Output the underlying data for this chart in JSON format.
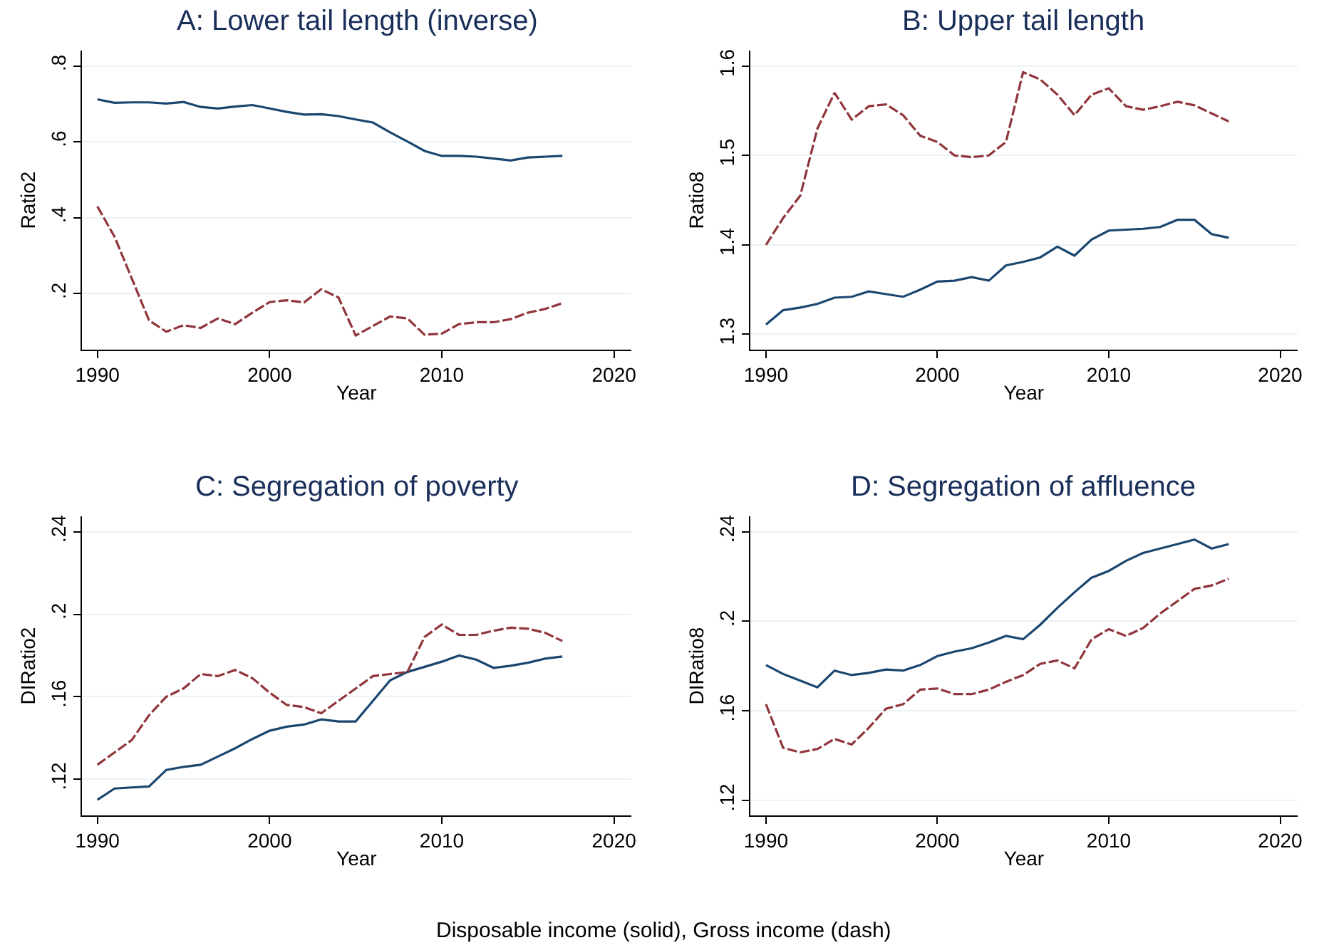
{
  "chart_data": [
    {
      "type": "line",
      "title": "A: Lower tail length (inverse)",
      "xlabel": "Year",
      "ylabel": "Ratio2",
      "x": [
        1990,
        1991,
        1992,
        1993,
        1994,
        1995,
        1996,
        1997,
        1998,
        1999,
        2000,
        2001,
        2002,
        2003,
        2004,
        2005,
        2006,
        2007,
        2008,
        2009,
        2010,
        2011,
        2012,
        2013,
        2014,
        2015,
        2016,
        2017
      ],
      "series": [
        {
          "color": "#1a476f",
          "line_style": "solid",
          "values": [
            0.712,
            0.703,
            0.704,
            0.704,
            0.701,
            0.705,
            0.692,
            0.688,
            0.693,
            0.697,
            0.688,
            0.679,
            0.672,
            0.673,
            0.668,
            0.659,
            0.651,
            0.625,
            0.601,
            0.576,
            0.563,
            0.563,
            0.561,
            0.556,
            0.551,
            0.559,
            0.561,
            0.563
          ]
        },
        {
          "color": "#90353b",
          "line_style": "dashed",
          "values": [
            0.43,
            0.35,
            0.24,
            0.13,
            0.1,
            0.117,
            0.11,
            0.135,
            0.12,
            0.15,
            0.178,
            0.183,
            0.177,
            0.212,
            0.19,
            0.09,
            0.115,
            0.14,
            0.135,
            0.092,
            0.095,
            0.12,
            0.125,
            0.125,
            0.133,
            0.15,
            0.16,
            0.175
          ]
        }
      ],
      "xlim": [
        1989.1,
        2021
      ],
      "xticks": [
        1990,
        2000,
        2010,
        2020
      ],
      "ylim": [
        0.053,
        0.84
      ],
      "yticks": [
        {
          "value": 0.2,
          "label": ".2"
        },
        {
          "value": 0.4,
          "label": ".4"
        },
        {
          "value": 0.6,
          "label": ".6"
        },
        {
          "value": 0.8,
          "label": ".8"
        }
      ],
      "grid": "y",
      "annotations": [
        "Disposable income (solid), Gross income (dash)"
      ]
    },
    {
      "type": "line",
      "title": "B: Upper tail length",
      "xlabel": "Year",
      "ylabel": "Ratio8",
      "x": [
        1990,
        1991,
        1992,
        1993,
        1994,
        1995,
        1996,
        1997,
        1998,
        1999,
        2000,
        2001,
        2002,
        2003,
        2004,
        2005,
        2006,
        2007,
        2008,
        2009,
        2010,
        2011,
        2012,
        2013,
        2014,
        2015,
        2016,
        2017
      ],
      "series": [
        {
          "color": "#1a476f",
          "line_style": "solid",
          "values": [
            1.311,
            1.327,
            1.33,
            1.334,
            1.341,
            1.342,
            1.348,
            1.345,
            1.342,
            1.35,
            1.359,
            1.36,
            1.364,
            1.36,
            1.377,
            1.381,
            1.386,
            1.398,
            1.388,
            1.406,
            1.416,
            1.417,
            1.418,
            1.42,
            1.428,
            1.428,
            1.412,
            1.408
          ]
        },
        {
          "color": "#90353b",
          "line_style": "dashed",
          "values": [
            1.4,
            1.43,
            1.455,
            1.53,
            1.57,
            1.54,
            1.555,
            1.557,
            1.545,
            1.522,
            1.515,
            1.5,
            1.498,
            1.5,
            1.515,
            1.593,
            1.585,
            1.568,
            1.545,
            1.568,
            1.575,
            1.555,
            1.551,
            1.555,
            1.56,
            1.556,
            1.547,
            1.538
          ]
        }
      ],
      "xlim": [
        1989.1,
        2021
      ],
      "xticks": [
        1990,
        2000,
        2010,
        2020
      ],
      "ylim": [
        1.283,
        1.617
      ],
      "yticks": [
        1.3,
        1.4,
        1.5,
        1.6
      ],
      "grid": "y"
    },
    {
      "type": "line",
      "title": "C: Segregation of poverty",
      "xlabel": "Year",
      "ylabel": "DIRatio2",
      "x": [
        1990,
        1991,
        1992,
        1993,
        1994,
        1995,
        1996,
        1997,
        1998,
        1999,
        2000,
        2001,
        2002,
        2003,
        2004,
        2005,
        2006,
        2007,
        2008,
        2009,
        2010,
        2011,
        2012,
        2013,
        2014,
        2015,
        2016,
        2017
      ],
      "series": [
        {
          "color": "#1a476f",
          "line_style": "solid",
          "values": [
            0.11,
            0.1155,
            0.116,
            0.1165,
            0.1245,
            0.126,
            0.127,
            0.131,
            0.135,
            0.1395,
            0.1435,
            0.1455,
            0.1465,
            0.149,
            0.148,
            0.148,
            0.158,
            0.168,
            0.172,
            0.1745,
            0.177,
            0.18,
            0.178,
            0.174,
            0.175,
            0.1765,
            0.1785,
            0.1795
          ]
        },
        {
          "color": "#90353b",
          "line_style": "dashed",
          "values": [
            0.127,
            0.133,
            0.139,
            0.151,
            0.16,
            0.164,
            0.171,
            0.17,
            0.173,
            0.169,
            0.162,
            0.156,
            0.155,
            0.152,
            0.158,
            0.164,
            0.17,
            0.171,
            0.172,
            0.189,
            0.195,
            0.19,
            0.19,
            0.192,
            0.1935,
            0.193,
            0.191,
            0.187
          ]
        }
      ],
      "xlim": [
        1989.1,
        2021
      ],
      "xticks": [
        1990,
        2000,
        2010,
        2020
      ],
      "ylim": [
        0.1025,
        0.2474
      ],
      "yticks": [
        {
          "value": 0.12,
          "label": ".12"
        },
        {
          "value": 0.16,
          "label": ".16"
        },
        {
          "value": 0.2,
          "label": ".2"
        },
        {
          "value": 0.24,
          "label": ".24"
        }
      ],
      "grid": "y"
    },
    {
      "type": "line",
      "title": "D: Segregation of affluence",
      "xlabel": "Year",
      "ylabel": "DIRatio8",
      "x": [
        1990,
        1991,
        1992,
        1993,
        1994,
        1995,
        1996,
        1997,
        1998,
        1999,
        2000,
        2001,
        2002,
        2003,
        2004,
        2005,
        2006,
        2007,
        2008,
        2009,
        2010,
        2011,
        2012,
        2013,
        2014,
        2015,
        2016,
        2017
      ],
      "series": [
        {
          "color": "#1a476f",
          "line_style": "solid",
          "values": [
            0.1805,
            0.1765,
            0.1735,
            0.1705,
            0.178,
            0.176,
            0.177,
            0.1785,
            0.178,
            0.1805,
            0.1845,
            0.1865,
            0.188,
            0.1905,
            0.1935,
            0.192,
            0.1985,
            0.206,
            0.213,
            0.2195,
            0.2225,
            0.227,
            0.2305,
            0.2325,
            0.2345,
            0.2365,
            0.2325,
            0.2345
          ]
        },
        {
          "color": "#90353b",
          "line_style": "dashed",
          "values": [
            0.163,
            0.1435,
            0.1415,
            0.143,
            0.1475,
            0.145,
            0.1525,
            0.161,
            0.163,
            0.1695,
            0.17,
            0.1675,
            0.1675,
            0.1695,
            0.173,
            0.176,
            0.181,
            0.1825,
            0.179,
            0.192,
            0.1965,
            0.1935,
            0.197,
            0.2035,
            0.209,
            0.2145,
            0.216,
            0.219
          ]
        }
      ],
      "xlim": [
        1989.1,
        2021
      ],
      "xticks": [
        1990,
        2000,
        2010,
        2020
      ],
      "ylim": [
        0.1134,
        0.2468
      ],
      "yticks": [
        {
          "value": 0.12,
          "label": ".12"
        },
        {
          "value": 0.16,
          "label": ".16"
        },
        {
          "value": 0.2,
          "label": ".2"
        },
        {
          "value": 0.24,
          "label": ".24"
        }
      ],
      "grid": "y"
    }
  ]
}
